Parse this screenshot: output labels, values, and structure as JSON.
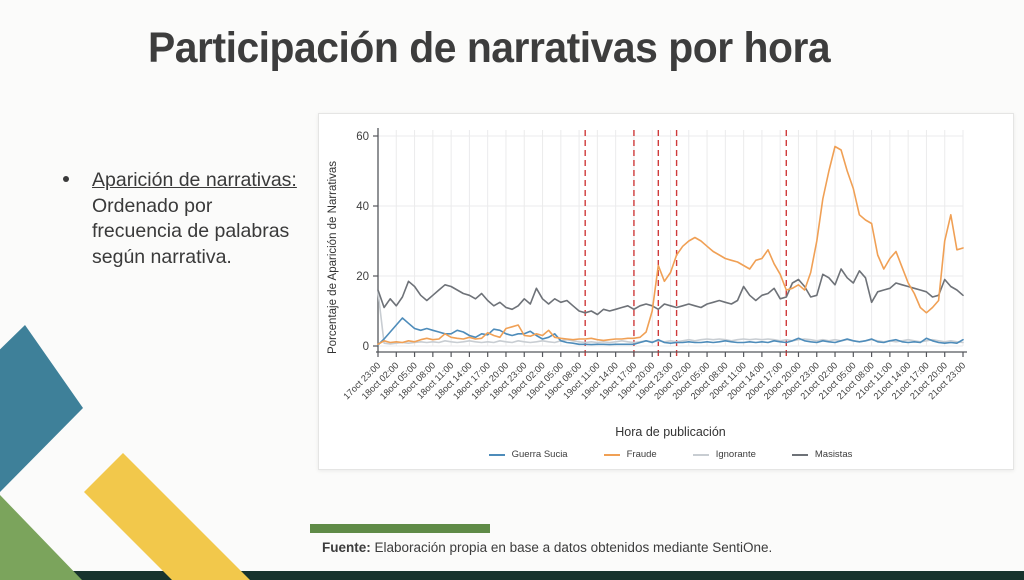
{
  "slide": {
    "title": "Participación de narrativas por hora",
    "bullet": {
      "lead": "Aparición de narrativas:",
      "rest": " Ordenado por frecuencia de palabras según narrativa."
    },
    "footer": {
      "source_label": "Fuente:",
      "source_text": " Elaboración propia en base a datos obtenidos mediante SentiOne."
    }
  },
  "chart_data": {
    "type": "line",
    "title": "",
    "xlabel": "Hora de publicación",
    "ylabel": "Porcentaje de Aparición de Narrativas",
    "ylim": [
      0,
      60
    ],
    "yticks": [
      0,
      20,
      40,
      60
    ],
    "grid": true,
    "legend_position": "bottom",
    "x_hours_total": 96,
    "tick_every_hours": 3,
    "x_tick_labels": [
      "17oct 23:00",
      "18oct 02:00",
      "18oct 05:00",
      "18oct 08:00",
      "18oct 11:00",
      "18oct 14:00",
      "18oct 17:00",
      "18oct 20:00",
      "18oct 23:00",
      "19oct 02:00",
      "19oct 05:00",
      "19oct 08:00",
      "19oct 11:00",
      "19oct 14:00",
      "19oct 17:00",
      "19oct 20:00",
      "19oct 23:00",
      "20oct 02:00",
      "20oct 05:00",
      "20oct 08:00",
      "20oct 11:00",
      "20oct 14:00",
      "20oct 17:00",
      "20oct 20:00",
      "20oct 23:00",
      "21oct 02:00",
      "21oct 05:00",
      "21oct 08:00",
      "21oct 11:00",
      "21oct 14:00",
      "21oct 17:00",
      "21oct 20:00",
      "21oct 23:00"
    ],
    "event_vlines_hours": [
      34,
      42,
      46,
      49,
      67
    ],
    "vline_color": "#cf3a3a",
    "series": [
      {
        "name": "Guerra Sucia",
        "color": "#4e8cba",
        "values": [
          0.3,
          2,
          4,
          6,
          8,
          6.5,
          5,
          4.5,
          5,
          4.5,
          4,
          3.5,
          3.5,
          4.5,
          4,
          3,
          2.5,
          3.5,
          3.2,
          4.8,
          4.5,
          3.5,
          3,
          3.5,
          3.5,
          4.2,
          3,
          2,
          2.5,
          3.5,
          1.5,
          1,
          0.8,
          0.5,
          0.5,
          0.4,
          0.5,
          0.5,
          0.4,
          0.5,
          0.5,
          0.5,
          0.5,
          1,
          1.5,
          1,
          1.8,
          1,
          0.8,
          1,
          1,
          1.2,
          1,
          1,
          1.2,
          1,
          1.2,
          1.5,
          1.2,
          1,
          1,
          1.2,
          1,
          1.2,
          1,
          1.5,
          1.2,
          1,
          1.5,
          2.2,
          1.5,
          1.2,
          1,
          1.5,
          1.2,
          1,
          1.5,
          2,
          1.5,
          1.2,
          1.5,
          2,
          1.2,
          1,
          1.5,
          1.8,
          1.2,
          1,
          1.2,
          1,
          2.2,
          1.5,
          1,
          0.8,
          1,
          0.8,
          1.8
        ]
      },
      {
        "name": "Fraude",
        "color": "#f0a055",
        "values": [
          0.5,
          1.5,
          1,
          1.2,
          1,
          1.5,
          1.2,
          1.8,
          2.2,
          1.8,
          2,
          3.5,
          2.5,
          2.2,
          2,
          2.5,
          2,
          2.2,
          3.8,
          3,
          2.5,
          5,
          5.5,
          6,
          3,
          2.8,
          3.5,
          3,
          4.5,
          2.5,
          2.2,
          2,
          1.8,
          2,
          2,
          2.2,
          1.8,
          1.6,
          1.8,
          2,
          2,
          2.2,
          2.2,
          2.5,
          4,
          10,
          23,
          18.5,
          21,
          26,
          28.5,
          30,
          31,
          30,
          28.5,
          27,
          26,
          25,
          24.5,
          24,
          23,
          22,
          24.5,
          25,
          27.5,
          23.5,
          20.5,
          16,
          16.5,
          17.5,
          16,
          21,
          30,
          42,
          50,
          57,
          56,
          50,
          45,
          37.5,
          36,
          35,
          26,
          22,
          25,
          27,
          22.5,
          18,
          15,
          11,
          9.5,
          11,
          13,
          30,
          37.5,
          27.5,
          28
        ]
      },
      {
        "name": "Ignorante",
        "color": "#c8cdd2",
        "values": [
          15.5,
          0.8,
          0.6,
          0.8,
          1,
          0.8,
          1,
          1.2,
          1,
          1.2,
          1,
          1.5,
          1.2,
          1,
          1.2,
          1.5,
          1.2,
          1,
          1.2,
          1,
          1.5,
          1.2,
          1,
          1.5,
          1.2,
          1,
          1.2,
          1.5,
          1.2,
          1,
          1.5,
          1.8,
          1.5,
          1.2,
          1,
          1.2,
          1,
          1.2,
          1,
          1.2,
          1.5,
          1.2,
          1,
          1.2,
          1.5,
          1.2,
          1.5,
          1.2,
          1.5,
          1.2,
          1.5,
          1.8,
          1.5,
          1.8,
          2,
          1.8,
          2,
          1.8,
          1.5,
          1.8,
          2,
          1.8,
          2,
          1.8,
          2,
          1.8,
          1.5,
          1.8,
          1.5,
          1.8,
          2,
          1.8,
          1.5,
          1.8,
          1.5,
          1.8,
          1.5,
          1.8,
          1.5,
          1.2,
          1.5,
          1.8,
          1.5,
          1.2,
          1.5,
          1.2,
          1.5,
          1.8,
          1.5,
          1.2,
          1.5,
          1.8,
          1.5,
          1.2,
          1.5,
          1.2,
          1
        ]
      },
      {
        "name": "Masistas",
        "color": "#6e7278",
        "values": [
          16,
          11,
          13.5,
          11.5,
          14,
          18.5,
          17,
          14.5,
          13,
          14.5,
          16,
          17.5,
          17,
          16,
          15,
          14.5,
          13.5,
          15,
          13,
          11.5,
          12.5,
          11,
          10.5,
          11.5,
          13.5,
          12,
          16.5,
          13.5,
          12,
          13.5,
          12.5,
          13,
          11.5,
          10,
          9.5,
          10,
          9,
          10.5,
          10,
          10.5,
          11,
          11.5,
          10.5,
          11.5,
          12,
          11.5,
          10.5,
          12,
          11.5,
          11,
          11.5,
          12,
          11.5,
          11,
          12,
          12.5,
          13,
          12.5,
          12,
          13,
          17,
          14.5,
          13,
          14.5,
          15,
          16.5,
          13.5,
          14,
          18,
          19,
          17,
          14,
          14.5,
          20.5,
          19.5,
          17.5,
          22,
          19.5,
          18,
          21.5,
          19.5,
          12.5,
          15.5,
          16,
          16.5,
          18,
          17.5,
          17,
          16.5,
          16,
          15.5,
          14,
          14.5,
          19,
          17,
          16,
          14.5
        ]
      }
    ]
  },
  "colors": {
    "grid": "#ebebec",
    "axis": "#55575c",
    "tick_text": "#3f3f3f",
    "teal_shape": "#3e8099",
    "green_shape": "#7ba45c",
    "yellow_shape": "#f2c84b",
    "footer_bar_green": "#5f8b47",
    "bottom_bar": "#17332d"
  }
}
